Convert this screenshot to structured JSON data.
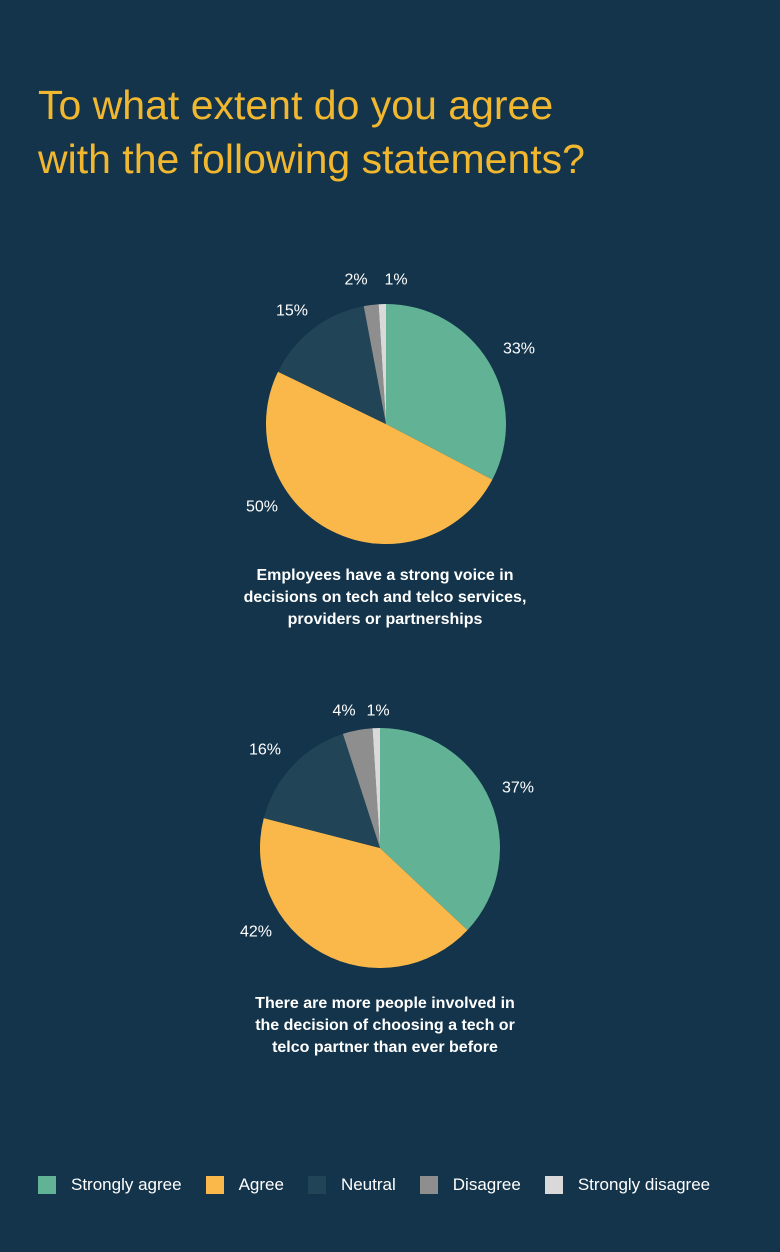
{
  "title_lines": [
    "To what extent do you agree",
    "with the following statements?"
  ],
  "colors": {
    "background": "#13344a",
    "title": "#f1b72f",
    "strongly_agree": "#62b295",
    "agree": "#fbb84a",
    "neutral": "#214457",
    "disagree": "#8e8e8e",
    "strongly_disagree": "#d9d9d9"
  },
  "legend": [
    {
      "label": "Strongly agree",
      "color": "#62b295"
    },
    {
      "label": "Agree",
      "color": "#fbb84a"
    },
    {
      "label": "Neutral",
      "color": "#214457"
    },
    {
      "label": "Disagree",
      "color": "#8e8e8e"
    },
    {
      "label": "Strongly disagree",
      "color": "#d9d9d9"
    }
  ],
  "chart_data": [
    {
      "type": "pie",
      "title_lines": [
        "Employees have a strong voice in",
        "decisions on tech and telco services,",
        "providers or partnerships"
      ],
      "categories": [
        "Strongly agree",
        "Agree",
        "Neutral",
        "Disagree",
        "Strongly disagree"
      ],
      "values": [
        33,
        50,
        15,
        2,
        1
      ],
      "labels": [
        "33%",
        "50%",
        "15%",
        "2%",
        "1%"
      ],
      "colors": [
        "#62b295",
        "#fbb84a",
        "#214457",
        "#8e8e8e",
        "#d9d9d9"
      ],
      "legend": "bottom"
    },
    {
      "type": "pie",
      "title_lines": [
        "There are more people involved in",
        "the decision of choosing a tech or",
        "telco partner than ever before"
      ],
      "categories": [
        "Strongly agree",
        "Agree",
        "Neutral",
        "Disagree",
        "Strongly disagree"
      ],
      "values": [
        37,
        42,
        16,
        4,
        1
      ],
      "labels": [
        "37%",
        "42%",
        "16%",
        "4%",
        "1%"
      ],
      "colors": [
        "#62b295",
        "#fbb84a",
        "#214457",
        "#8e8e8e",
        "#d9d9d9"
      ],
      "legend": "bottom"
    }
  ]
}
